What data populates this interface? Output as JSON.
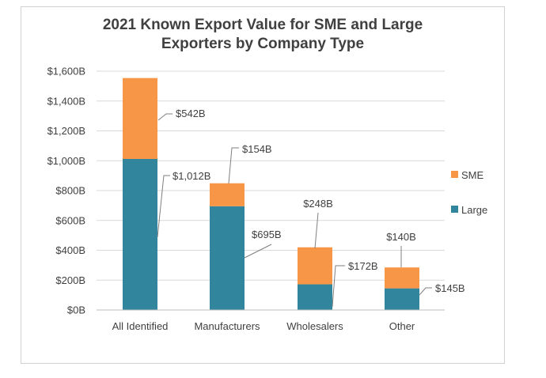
{
  "chart_data": {
    "type": "bar",
    "stacked": true,
    "title": "2021 Known Export Value for SME and Large Exporters by Company Type",
    "title_lines": [
      "2021 Known Export Value for SME and Large",
      "Exporters by Company Type"
    ],
    "categories": [
      "All Identified",
      "Manufacturers",
      "Wholesalers",
      "Other"
    ],
    "series": [
      {
        "name": "Large",
        "values": [
          1012,
          695,
          172,
          145
        ],
        "labels": [
          "$1,012B",
          "$695B",
          "$172B",
          "$145B"
        ],
        "color": "#31859c"
      },
      {
        "name": "SME",
        "values": [
          542,
          154,
          248,
          140
        ],
        "labels": [
          "$542B",
          "$154B",
          "$248B",
          "$140B"
        ],
        "color": "#f79646"
      }
    ],
    "ylim": [
      0,
      1600
    ],
    "yticks": [
      0,
      200,
      400,
      600,
      800,
      1000,
      1200,
      1400,
      1600
    ],
    "ytick_labels": [
      "$0B",
      "$200B",
      "$400B",
      "$600B",
      "$800B",
      "$1,000B",
      "$1,200B",
      "$1,400B",
      "$1,600B"
    ],
    "xlabel": "",
    "ylabel": "",
    "grid": true,
    "legend_position": "right"
  }
}
